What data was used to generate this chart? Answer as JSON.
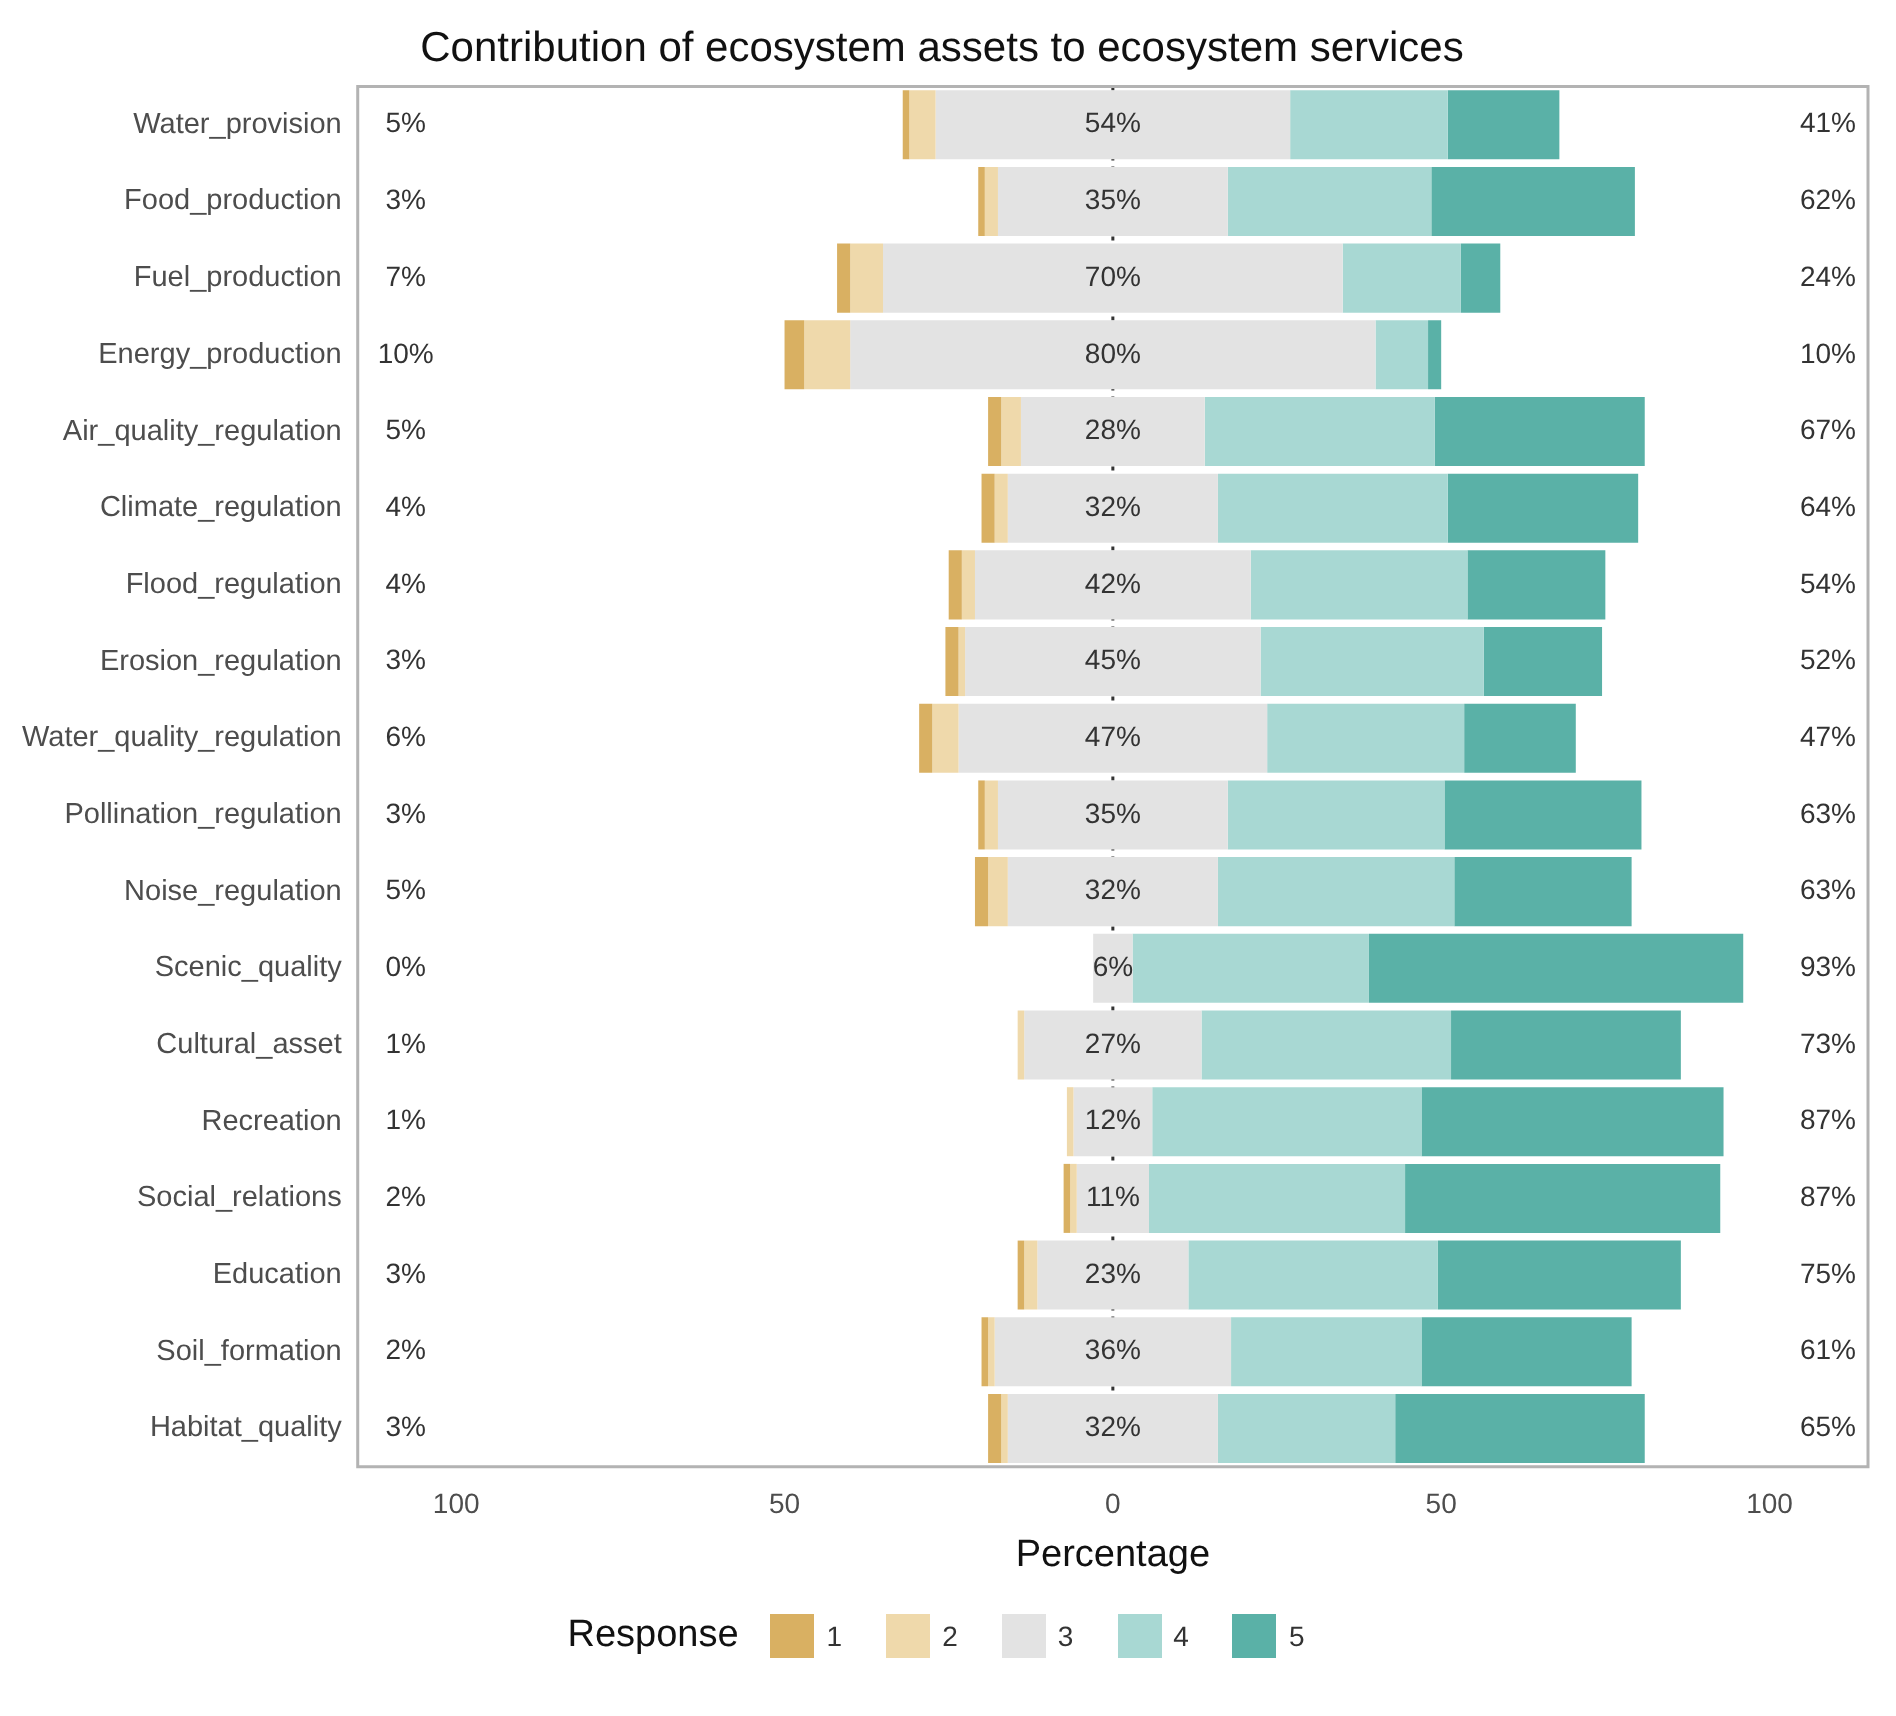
{
  "chart_data": {
    "type": "bar",
    "orientation": "horizontal",
    "title": "Contribution of ecosystem assets to ecosystem services",
    "xlabel": "Percentage",
    "legend_title": "Response",
    "legend": "bottom",
    "grid": false,
    "categories": [
      "Water_provision",
      "Food_production",
      "Fuel_production",
      "Energy_production",
      "Air_quality_regulation",
      "Climate_regulation",
      "Flood_regulation",
      "Erosion_regulation",
      "Water_quality_regulation",
      "Pollination_regulation",
      "Noise_regulation",
      "Scenic_quality",
      "Cultural_asset",
      "Recreation",
      "Social_relations",
      "Education",
      "Soil_formation",
      "Habitat_quality"
    ],
    "xlim": [
      -115,
      115
    ],
    "xticks": [
      {
        "value": -100,
        "label": "100"
      },
      {
        "value": -50,
        "label": "50"
      },
      0,
      50,
      100
    ],
    "series": [
      {
        "name": "1",
        "color": "#d9b062",
        "values": [
          1,
          1,
          2,
          3,
          2,
          2,
          2,
          2,
          2,
          1,
          2,
          null,
          null,
          null,
          1,
          1,
          1,
          2
        ],
        "base": [
          -32,
          -20.5,
          -42,
          -50,
          -19,
          -20,
          -25,
          -25.5,
          -29.5,
          -20.5,
          -21,
          null,
          null,
          null,
          -7.5,
          -14.5,
          -20,
          -19
        ]
      },
      {
        "name": "2",
        "color": "#efd9ab",
        "values": [
          4,
          2,
          5,
          7,
          3,
          2,
          2,
          1,
          4,
          2,
          3,
          null,
          1,
          1,
          1,
          2,
          1,
          1
        ],
        "base": [
          -31,
          -19.5,
          -40,
          -47,
          -17,
          -18,
          -23,
          -23.5,
          -27.5,
          -19.5,
          -19,
          null,
          -14.5,
          -7,
          -6.5,
          -13.5,
          -19,
          -17
        ]
      },
      {
        "name": "3",
        "color": "#e3e3e3",
        "values": [
          54,
          35,
          70,
          80,
          28,
          32,
          42,
          45,
          47,
          35,
          32,
          6,
          27,
          12,
          11,
          23,
          36,
          32
        ],
        "base": [
          -27,
          -17.5,
          -35,
          -40,
          -14,
          -16,
          -21,
          -22.5,
          -23.5,
          -17.5,
          -16,
          -3,
          -13.5,
          -6,
          -5.5,
          -11.5,
          -18,
          -16
        ],
        "value_labels": [
          "54%",
          "35%",
          "70%",
          "80%",
          "28%",
          "32%",
          "42%",
          "45%",
          "47%",
          "35%",
          "32%",
          "6%",
          "27%",
          "12%",
          "11%",
          "23%",
          "36%",
          "32%"
        ]
      },
      {
        "name": "4",
        "color": "#a8d8d3",
        "values": [
          24,
          31,
          18,
          8,
          35,
          35,
          33,
          34,
          30,
          33,
          36,
          36,
          38,
          41,
          39,
          38,
          29,
          27
        ],
        "base": [
          27,
          17.5,
          35,
          40,
          14,
          16,
          21,
          22.5,
          23.5,
          17.5,
          16,
          3,
          13.5,
          6,
          5.5,
          11.5,
          18,
          16
        ]
      },
      {
        "name": "5",
        "color": "#5ab1a7",
        "values": [
          17,
          31,
          6,
          2,
          32,
          29,
          21,
          18,
          17,
          30,
          27,
          57,
          35,
          46,
          48,
          37,
          32,
          38
        ],
        "base": [
          51,
          48.5,
          53,
          48,
          49,
          51,
          54,
          56.5,
          53.5,
          50.5,
          52,
          39,
          51.5,
          47,
          44.5,
          49.5,
          47,
          43
        ]
      }
    ],
    "ref_lines": [
      {
        "axis": "x",
        "value": 0,
        "color": "#333333",
        "line_style": "dotted"
      }
    ],
    "annotations": [
      "5%",
      "41%",
      "3%",
      "62%",
      "7%",
      "24%",
      "10%",
      "10%",
      "5%",
      "67%",
      "4%",
      "64%",
      "4%",
      "54%",
      "3%",
      "52%",
      "6%",
      "47%",
      "3%",
      "63%",
      "5%",
      "63%",
      "0%",
      "93%",
      "1%",
      "73%",
      "1%",
      "87%",
      "2%",
      "87%",
      "3%",
      "75%",
      "2%",
      "61%",
      "3%",
      "65%"
    ]
  }
}
